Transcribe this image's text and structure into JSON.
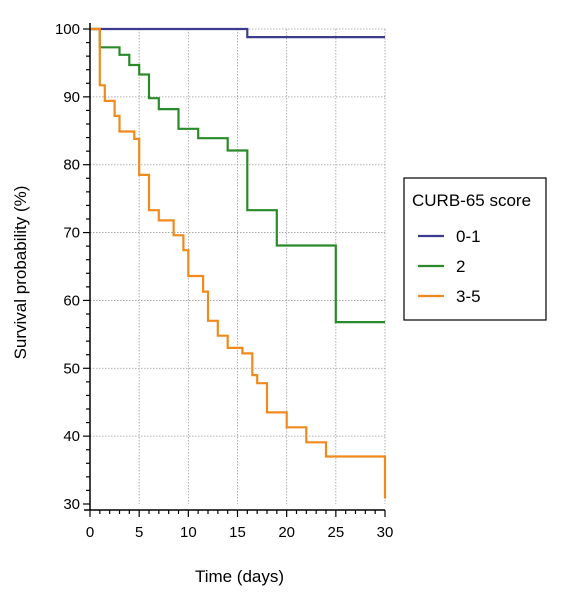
{
  "chart_data": {
    "type": "line",
    "step": true,
    "xlabel": "Time (days)",
    "ylabel": "Survival probability (%)",
    "xlim": [
      0,
      30
    ],
    "ylim": [
      30,
      100
    ],
    "x_ticks": [
      0,
      5,
      10,
      15,
      20,
      25,
      30
    ],
    "y_ticks": [
      30,
      40,
      50,
      60,
      70,
      80,
      90,
      100
    ],
    "grid": true,
    "legend": {
      "title": "CURB-65 score",
      "placement": "right"
    },
    "series": [
      {
        "name": "0-1",
        "color": "#3b3b8f",
        "x": [
          0,
          16,
          30
        ],
        "y": [
          100,
          98.8,
          98.8
        ]
      },
      {
        "name": "2",
        "color": "#2a8a2a",
        "x": [
          0,
          1,
          3,
          4,
          5,
          6,
          7,
          9,
          11,
          14,
          16,
          19,
          25,
          30
        ],
        "y": [
          100,
          97.3,
          96.2,
          94.7,
          93.3,
          89.8,
          88.2,
          85.3,
          83.9,
          82.1,
          73.3,
          68.1,
          56.8,
          56.8
        ]
      },
      {
        "name": "3-5",
        "color": "#f08a1c",
        "x": [
          0,
          1,
          1.5,
          2.5,
          3,
          4.5,
          5,
          6,
          7,
          8.5,
          9.5,
          10,
          11.5,
          12,
          13,
          14,
          15.5,
          16.5,
          17,
          18,
          19,
          20,
          22,
          24,
          30
        ],
        "y": [
          100,
          91.7,
          89.4,
          87.2,
          84.9,
          83.8,
          78.5,
          73.3,
          71.8,
          69.6,
          67.4,
          63.6,
          61.3,
          57.0,
          54.8,
          53.0,
          52.2,
          49.0,
          47.8,
          43.5,
          43.5,
          41.3,
          39.1,
          37.0,
          30.8
        ]
      }
    ]
  }
}
